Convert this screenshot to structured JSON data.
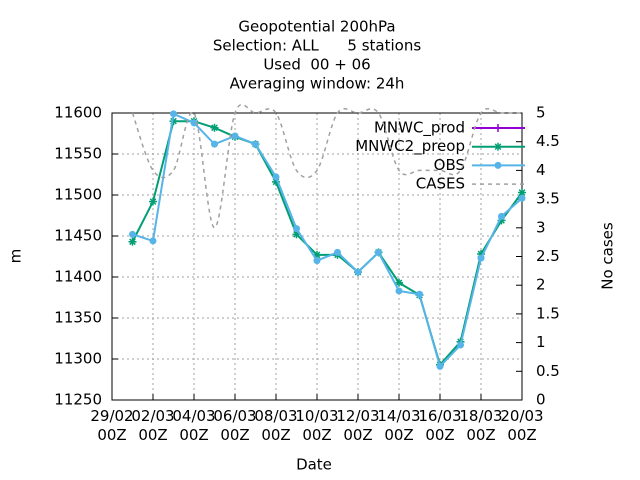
{
  "chart_data": {
    "type": "line",
    "title": [
      "Geopotential 200hPa",
      "Selection: ALL      5 stations",
      "Used  00 + 06",
      "Averaging window: 24h"
    ],
    "xlabel": "Date",
    "ylabel": "m",
    "y2label": "No cases",
    "x": [
      "01/03 00Z",
      "02/03 00Z",
      "03/03 00Z",
      "04/03 00Z",
      "05/03 00Z",
      "06/03 00Z",
      "07/03 00Z",
      "08/03 00Z",
      "09/03 00Z",
      "10/03 00Z",
      "11/03 00Z",
      "12/03 00Z",
      "13/03 00Z",
      "14/03 00Z",
      "15/03 00Z",
      "16/03 00Z",
      "17/03 00Z",
      "18/03 00Z",
      "19/03 00Z",
      "20/03 00Z"
    ],
    "xlim": [
      "29/02 00Z",
      "20/03 00Z"
    ],
    "xticks": [
      "29/02\n00Z",
      "02/03\n00Z",
      "04/03\n00Z",
      "06/03\n00Z",
      "08/03\n00Z",
      "10/03\n00Z",
      "12/03\n00Z",
      "14/03\n00Z",
      "16/03\n00Z",
      "18/03\n00Z",
      "20/03\n00Z"
    ],
    "ylim": [
      11250,
      11600
    ],
    "yticks": [
      11250,
      11300,
      11350,
      11400,
      11450,
      11500,
      11550,
      11600
    ],
    "y2lim": [
      0,
      5
    ],
    "y2ticks": [
      0,
      0.5,
      1,
      1.5,
      2,
      2.5,
      3,
      3.5,
      4,
      4.5,
      5
    ],
    "grid": true,
    "legend": "top-right",
    "series": [
      {
        "name": "MNWC_prod",
        "color": "#9400d3",
        "marker": "plus",
        "axis": "y",
        "values": [
          null,
          null,
          null,
          null,
          null,
          null,
          null,
          null,
          null,
          null,
          null,
          null,
          null,
          null,
          null,
          null,
          null,
          null,
          null,
          null
        ]
      },
      {
        "name": "MNWC2_preop",
        "color": "#009e73",
        "marker": "star",
        "axis": "y",
        "values": [
          11443,
          11492,
          11590,
          11590,
          11582,
          11571,
          11562,
          11516,
          11452,
          11427,
          11427,
          11406,
          11430,
          11393,
          11378,
          11293,
          11321,
          11428,
          11469,
          11503
        ]
      },
      {
        "name": "OBS",
        "color": "#56b4e9",
        "marker": "circle",
        "axis": "y",
        "values": [
          11452,
          11444,
          11599,
          11588,
          11562,
          11572,
          11562,
          11522,
          11459,
          11420,
          11430,
          11406,
          11430,
          11383,
          11379,
          11291,
          11317,
          11423,
          11474,
          11496
        ]
      },
      {
        "name": "CASES",
        "color": "#a0a0a0",
        "dash": true,
        "smooth": true,
        "axis": "y2",
        "values": [
          5,
          4,
          4,
          5,
          3,
          5,
          5,
          5,
          4,
          4,
          5,
          5,
          5,
          4,
          4,
          4,
          4,
          5,
          5,
          5
        ]
      }
    ]
  }
}
